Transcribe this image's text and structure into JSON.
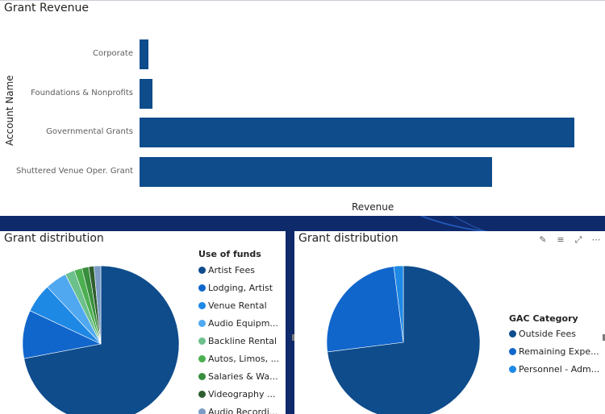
{
  "top_chart": {
    "title": "Grant Revenue",
    "y_axis_label": "Account Name",
    "x_axis_label": "Revenue",
    "categories": [
      "Corporate",
      "Foundations & Nonprofits",
      "Governmental Grants",
      "Shuttered Venue Oper. Grant"
    ],
    "values": [
      2,
      3,
      100,
      81
    ],
    "bar_color": "#0e4c8c"
  },
  "left_chart": {
    "title": "Grant distribution",
    "legend_title": "Use of funds",
    "legend": [
      {
        "label": "Artist Fees",
        "color": "#0e4c8c"
      },
      {
        "label": "Lodging, Artist",
        "color": "#1166cc"
      },
      {
        "label": "Venue Rental",
        "color": "#1e88e5"
      },
      {
        "label": "Audio Equipm...",
        "color": "#4fa8f0"
      },
      {
        "label": "Backline Rental",
        "color": "#6cc08c"
      },
      {
        "label": "Autos, Limos, ...",
        "color": "#4caf50"
      },
      {
        "label": "Salaries & Wa...",
        "color": "#388e3c"
      },
      {
        "label": "Videography ...",
        "color": "#2e5e2e"
      },
      {
        "label": "Audio Recordi...",
        "color": "#7a9cc6"
      }
    ],
    "slices_pct": [
      72,
      10,
      6,
      4.5,
      2,
      1.6,
      1.4,
      1.1,
      1.4
    ]
  },
  "right_chart": {
    "title": "Grant distribution",
    "legend_title": "GAC Category",
    "legend": [
      {
        "label": "Outside Fees",
        "color": "#0e4c8c"
      },
      {
        "label": "Remaining Expe...",
        "color": "#1166cc"
      },
      {
        "label": "Personnel - Adm...",
        "color": "#1e88e5"
      }
    ],
    "slices_pct": [
      73,
      25,
      2
    ],
    "icons": [
      "pin-icon",
      "filter-icon",
      "focus-mode-icon",
      "more-options-icon"
    ],
    "icon_glyphs": [
      "✎",
      "≡",
      "⤢",
      "⋯"
    ]
  },
  "chart_data": [
    {
      "type": "bar",
      "title": "Grant Revenue",
      "ylabel": "Account Name",
      "xlabel": "Revenue",
      "categories": [
        "Corporate",
        "Foundations & Nonprofits",
        "Governmental Grants",
        "Shuttered Venue Oper. Grant"
      ],
      "values": [
        2,
        3,
        100,
        81
      ],
      "orientation": "horizontal"
    },
    {
      "type": "pie",
      "title": "Grant distribution",
      "legend_title": "Use of funds",
      "categories": [
        "Artist Fees",
        "Lodging, Artist",
        "Venue Rental",
        "Audio Equipm...",
        "Backline Rental",
        "Autos, Limos, ...",
        "Salaries & Wa...",
        "Videography ...",
        "Audio Recordi..."
      ],
      "values": [
        72,
        10,
        6,
        4.5,
        2,
        1.6,
        1.4,
        1.1,
        1.4
      ]
    },
    {
      "type": "pie",
      "title": "Grant distribution",
      "legend_title": "GAC Category",
      "categories": [
        "Outside Fees",
        "Remaining Expe...",
        "Personnel - Adm..."
      ],
      "values": [
        73,
        25,
        2
      ]
    }
  ]
}
